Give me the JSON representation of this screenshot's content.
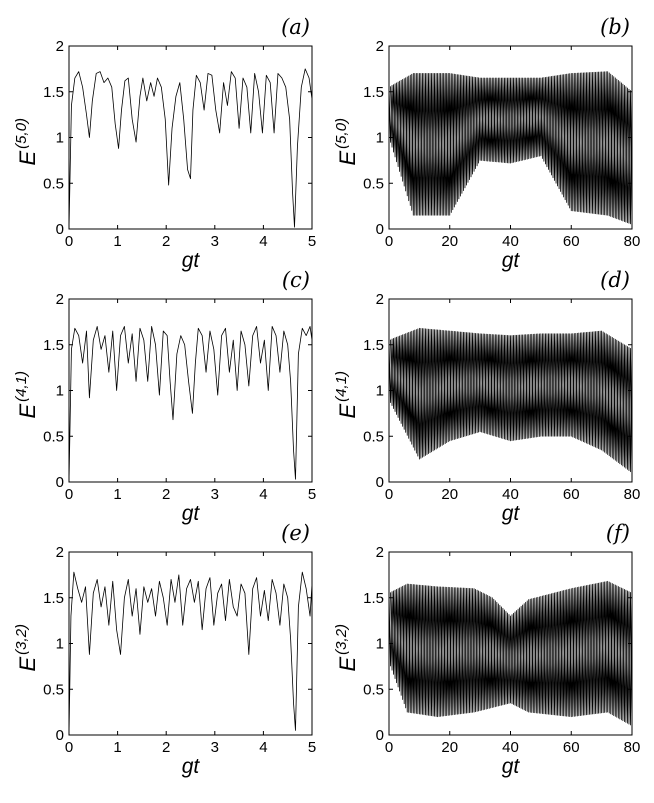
{
  "chart_data": [
    {
      "panel": "(a)",
      "type": "line",
      "xlabel": "gt",
      "ylabel_main": "E",
      "ylabel_sup": "(5,0)",
      "xlim": [
        0,
        5
      ],
      "ylim": [
        0,
        2
      ],
      "xticks": [
        0,
        1,
        2,
        3,
        4,
        5
      ],
      "yticks": [
        0,
        0.5,
        1,
        1.5,
        2
      ],
      "xtick_labels": [
        "0",
        "1",
        "2",
        "3",
        "4",
        "5"
      ],
      "ytick_labels": [
        "0",
        "0.5",
        "1",
        "1.5",
        "2"
      ],
      "series": [
        {
          "x": [
            0,
            0.05,
            0.12,
            0.2,
            0.28,
            0.36,
            0.42,
            0.48,
            0.56,
            0.64,
            0.72,
            0.8,
            0.88,
            0.95,
            1.02,
            1.08,
            1.15,
            1.22,
            1.3,
            1.38,
            1.46,
            1.52,
            1.6,
            1.68,
            1.75,
            1.82,
            1.9,
            1.98,
            2.05,
            2.12,
            2.2,
            2.28,
            2.36,
            2.44,
            2.5,
            2.55,
            2.62,
            2.7,
            2.78,
            2.86,
            2.94,
            3.02,
            3.1,
            3.18,
            3.26,
            3.34,
            3.42,
            3.5,
            3.58,
            3.66,
            3.74,
            3.82,
            3.9,
            3.98,
            4.06,
            4.14,
            4.22,
            4.3,
            4.38,
            4.46,
            4.54,
            4.6,
            4.64,
            4.7,
            4.78,
            4.86,
            4.94,
            5
          ],
          "y": [
            0.0,
            1.35,
            1.65,
            1.72,
            1.55,
            1.25,
            1.0,
            1.4,
            1.7,
            1.72,
            1.6,
            1.65,
            1.55,
            1.15,
            0.88,
            1.3,
            1.62,
            1.65,
            1.2,
            0.95,
            1.45,
            1.65,
            1.4,
            1.6,
            1.45,
            1.65,
            1.55,
            1.2,
            0.48,
            1.1,
            1.45,
            1.6,
            1.2,
            0.65,
            0.55,
            1.3,
            1.68,
            1.6,
            1.3,
            1.7,
            1.68,
            1.3,
            1.05,
            1.6,
            1.35,
            1.72,
            1.65,
            1.1,
            1.65,
            1.55,
            1.05,
            1.7,
            1.5,
            1.05,
            1.68,
            1.6,
            1.05,
            1.7,
            1.65,
            1.55,
            1.2,
            0.4,
            0.02,
            0.9,
            1.55,
            1.75,
            1.65,
            1.42
          ]
        }
      ]
    },
    {
      "panel": "(b)",
      "type": "line",
      "xlabel": "gt",
      "ylabel_main": "E",
      "ylabel_sup": "(5,0)",
      "xlim": [
        0,
        80
      ],
      "ylim": [
        0,
        2
      ],
      "xticks": [
        0,
        20,
        40,
        60,
        80
      ],
      "yticks": [
        0,
        0.5,
        1,
        1.5,
        2
      ],
      "xtick_labels": [
        "0",
        "20",
        "40",
        "60",
        "80"
      ],
      "ytick_labels": [
        "0",
        "0.5",
        "1",
        "1.5",
        "2"
      ],
      "oscillation": {
        "period": 1.0,
        "segments": [
          [
            0,
            1.55,
            1.0
          ],
          [
            8,
            1.7,
            0.15
          ],
          [
            20,
            1.7,
            0.15
          ],
          [
            30,
            1.65,
            0.75
          ],
          [
            40,
            1.65,
            0.72
          ],
          [
            50,
            1.65,
            0.8
          ],
          [
            60,
            1.7,
            0.2
          ],
          [
            72,
            1.72,
            0.15
          ],
          [
            80,
            1.5,
            0.05
          ]
        ],
        "second_phase": 0.5
      }
    },
    {
      "panel": "(c)",
      "type": "line",
      "xlabel": "gt",
      "ylabel_main": "E",
      "ylabel_sup": "(4,1)",
      "xlim": [
        0,
        5
      ],
      "ylim": [
        0,
        2
      ],
      "xticks": [
        0,
        1,
        2,
        3,
        4,
        5
      ],
      "yticks": [
        0,
        0.5,
        1,
        1.5,
        2
      ],
      "xtick_labels": [
        "0",
        "1",
        "2",
        "3",
        "4",
        "5"
      ],
      "ytick_labels": [
        "0",
        "0.5",
        "1",
        "1.5",
        "2"
      ],
      "series": [
        {
          "x": [
            0,
            0.05,
            0.12,
            0.2,
            0.28,
            0.36,
            0.42,
            0.5,
            0.58,
            0.66,
            0.74,
            0.82,
            0.9,
            0.98,
            1.06,
            1.14,
            1.22,
            1.3,
            1.38,
            1.46,
            1.54,
            1.62,
            1.7,
            1.78,
            1.86,
            1.94,
            2.02,
            2.08,
            2.14,
            2.22,
            2.3,
            2.38,
            2.46,
            2.54,
            2.6,
            2.66,
            2.74,
            2.82,
            2.9,
            2.98,
            3.06,
            3.14,
            3.22,
            3.3,
            3.38,
            3.46,
            3.54,
            3.62,
            3.7,
            3.78,
            3.86,
            3.94,
            4.02,
            4.1,
            4.18,
            4.26,
            4.34,
            4.42,
            4.5,
            4.56,
            4.62,
            4.66,
            4.72,
            4.8,
            4.88,
            4.96,
            5
          ],
          "y": [
            0.0,
            1.45,
            1.68,
            1.6,
            1.3,
            1.65,
            0.92,
            1.55,
            1.7,
            1.45,
            1.6,
            1.2,
            1.65,
            1.0,
            1.6,
            1.7,
            1.3,
            1.62,
            1.1,
            1.68,
            1.55,
            1.1,
            1.7,
            1.5,
            0.95,
            1.65,
            1.6,
            1.1,
            0.68,
            1.4,
            1.6,
            1.5,
            1.1,
            0.75,
            1.3,
            1.68,
            1.6,
            1.2,
            1.65,
            1.45,
            0.95,
            1.6,
            1.68,
            1.2,
            1.55,
            1.0,
            1.65,
            1.5,
            1.05,
            1.6,
            1.7,
            1.3,
            1.55,
            1.0,
            1.7,
            1.6,
            1.2,
            1.65,
            1.5,
            1.1,
            0.35,
            0.03,
            1.4,
            1.68,
            1.6,
            1.7,
            1.55
          ]
        }
      ]
    },
    {
      "panel": "(d)",
      "type": "line",
      "xlabel": "gt",
      "ylabel_main": "E",
      "ylabel_sup": "(4,1)",
      "xlim": [
        0,
        80
      ],
      "ylim": [
        0,
        2
      ],
      "xticks": [
        0,
        20,
        40,
        60,
        80
      ],
      "yticks": [
        0,
        0.5,
        1,
        1.5,
        2
      ],
      "xtick_labels": [
        "0",
        "20",
        "40",
        "60",
        "80"
      ],
      "ytick_labels": [
        "0",
        "0.5",
        "1",
        "1.5",
        "2"
      ],
      "oscillation": {
        "period": 1.0,
        "segments": [
          [
            0,
            1.55,
            0.9
          ],
          [
            10,
            1.68,
            0.25
          ],
          [
            20,
            1.65,
            0.45
          ],
          [
            30,
            1.62,
            0.55
          ],
          [
            40,
            1.6,
            0.45
          ],
          [
            50,
            1.62,
            0.5
          ],
          [
            60,
            1.62,
            0.5
          ],
          [
            70,
            1.65,
            0.35
          ],
          [
            80,
            1.45,
            0.1
          ]
        ],
        "second_phase": 0.5
      }
    },
    {
      "panel": "(e)",
      "type": "line",
      "xlabel": "gt",
      "ylabel_main": "E",
      "ylabel_sup": "(3,2)",
      "xlim": [
        0,
        5
      ],
      "ylim": [
        0,
        2
      ],
      "xticks": [
        0,
        1,
        2,
        3,
        4,
        5
      ],
      "yticks": [
        0,
        0.5,
        1,
        1.5,
        2
      ],
      "xtick_labels": [
        "0",
        "1",
        "2",
        "3",
        "4",
        "5"
      ],
      "ytick_labels": [
        "0",
        "0.5",
        "1",
        "1.5",
        "2"
      ],
      "series": [
        {
          "x": [
            0,
            0.04,
            0.1,
            0.18,
            0.26,
            0.34,
            0.42,
            0.5,
            0.58,
            0.66,
            0.74,
            0.82,
            0.9,
            0.98,
            1.06,
            1.14,
            1.22,
            1.3,
            1.38,
            1.46,
            1.54,
            1.62,
            1.7,
            1.78,
            1.86,
            1.94,
            2.02,
            2.1,
            2.18,
            2.26,
            2.34,
            2.42,
            2.5,
            2.58,
            2.66,
            2.74,
            2.82,
            2.9,
            2.98,
            3.06,
            3.14,
            3.22,
            3.3,
            3.38,
            3.46,
            3.54,
            3.62,
            3.7,
            3.78,
            3.86,
            3.94,
            4.02,
            4.1,
            4.18,
            4.26,
            4.34,
            4.42,
            4.5,
            4.56,
            4.62,
            4.66,
            4.72,
            4.8,
            4.88,
            4.96,
            5
          ],
          "y": [
            0.0,
            1.3,
            1.78,
            1.6,
            1.45,
            1.62,
            0.88,
            1.55,
            1.7,
            1.4,
            1.62,
            1.2,
            1.68,
            1.15,
            0.88,
            1.5,
            1.7,
            1.3,
            1.6,
            1.1,
            1.62,
            1.45,
            1.6,
            1.3,
            1.68,
            1.5,
            1.2,
            1.7,
            1.45,
            1.75,
            1.2,
            1.6,
            1.7,
            1.45,
            1.68,
            1.15,
            1.6,
            1.72,
            1.2,
            1.55,
            1.65,
            1.25,
            1.7,
            1.4,
            1.3,
            1.65,
            1.55,
            0.88,
            1.6,
            1.72,
            1.3,
            1.58,
            1.25,
            1.7,
            1.55,
            1.2,
            1.65,
            1.5,
            1.05,
            0.35,
            0.05,
            1.4,
            1.78,
            1.6,
            1.3,
            1.65
          ]
        }
      ]
    },
    {
      "panel": "(f)",
      "type": "line",
      "xlabel": "gt",
      "ylabel_main": "E",
      "ylabel_sup": "(3,2)",
      "xlim": [
        0,
        80
      ],
      "ylim": [
        0,
        2
      ],
      "xticks": [
        0,
        20,
        40,
        60,
        80
      ],
      "yticks": [
        0,
        0.5,
        1,
        1.5,
        2
      ],
      "xtick_labels": [
        "0",
        "20",
        "40",
        "60",
        "80"
      ],
      "ytick_labels": [
        "0",
        "0.5",
        "1",
        "1.5",
        "2"
      ],
      "oscillation": {
        "period": 1.0,
        "segments": [
          [
            0,
            1.55,
            0.8
          ],
          [
            6,
            1.65,
            0.25
          ],
          [
            16,
            1.62,
            0.2
          ],
          [
            28,
            1.6,
            0.25
          ],
          [
            34,
            1.5,
            0.3
          ],
          [
            40,
            1.3,
            0.35
          ],
          [
            46,
            1.48,
            0.25
          ],
          [
            60,
            1.6,
            0.2
          ],
          [
            72,
            1.68,
            0.25
          ],
          [
            80,
            1.55,
            0.1
          ]
        ],
        "second_phase": 0.5
      }
    }
  ]
}
